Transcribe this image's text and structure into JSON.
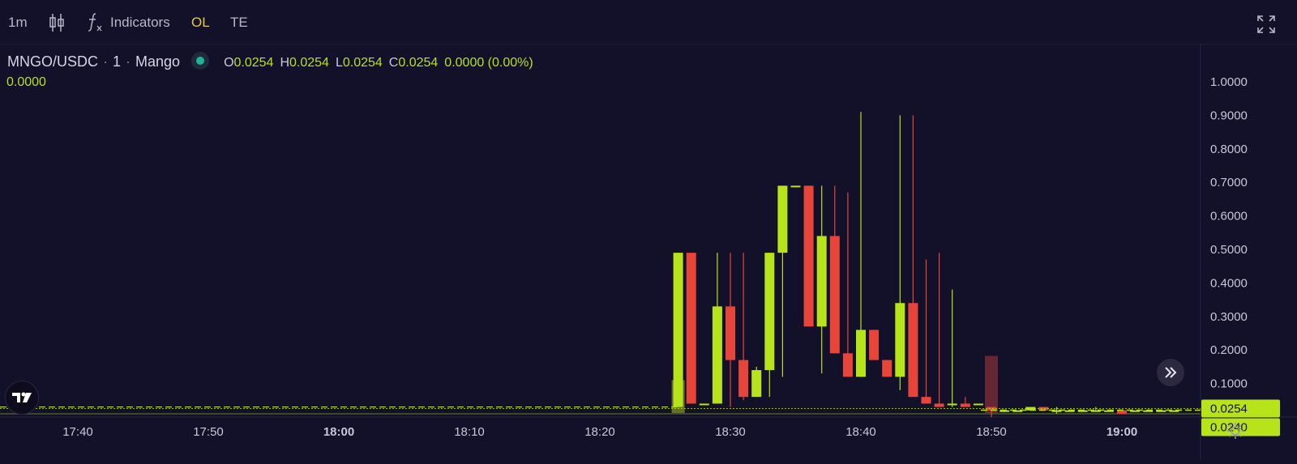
{
  "toolbar": {
    "interval": "1m",
    "chart_type_icon": "candlestick-icon",
    "indicators_icon": "function-icon",
    "indicators_label": "Indicators",
    "ol_label": "OL",
    "te_label": "TE",
    "fullscreen_icon": "fullscreen-icon"
  },
  "legend": {
    "symbol": "MNGO/USDC",
    "interval": "1",
    "exchange": "Mango",
    "o_key": "O",
    "o_val": "0.0254",
    "h_key": "H",
    "h_val": "0.0254",
    "l_key": "L",
    "l_val": "0.0254",
    "c_key": "C",
    "c_val": "0.0254",
    "change": "0.0000 (0.00%)",
    "volume": "0.0000"
  },
  "price_axis": {
    "ticks": [
      "1.0000",
      "0.9000",
      "0.8000",
      "0.7000",
      "0.6000",
      "0.5000",
      "0.4000",
      "0.3000",
      "0.2000",
      "0.1000"
    ],
    "last_price": "0.0254",
    "second_price": "0.0240"
  },
  "time_axis": {
    "ticks": [
      {
        "label": "17:40",
        "bold": false
      },
      {
        "label": "17:50",
        "bold": false
      },
      {
        "label": "18:00",
        "bold": true
      },
      {
        "label": "18:10",
        "bold": false
      },
      {
        "label": "18:20",
        "bold": false
      },
      {
        "label": "18:30",
        "bold": false
      },
      {
        "label": "18:40",
        "bold": false
      },
      {
        "label": "18:50",
        "bold": false
      },
      {
        "label": "19:00",
        "bold": true
      }
    ]
  },
  "colors": {
    "up": "#b6e31a",
    "down": "#e8453a",
    "bg": "#13102a",
    "accent": "#e6c84a"
  },
  "chart_data": {
    "type": "candlestick",
    "symbol": "MNGO/USDC",
    "yrange": [
      0,
      1.0
    ],
    "xrange_minutes": [
      "17:35",
      "19:05"
    ],
    "candles": [
      {
        "t": "18:26",
        "o": 0.03,
        "h": 0.49,
        "l": 0.03,
        "c": 0.49
      },
      {
        "t": "18:27",
        "o": 0.49,
        "h": 0.49,
        "l": 0.04,
        "c": 0.04
      },
      {
        "t": "18:28",
        "o": 0.04,
        "h": 0.04,
        "l": 0.04,
        "c": 0.04
      },
      {
        "t": "18:29",
        "o": 0.04,
        "h": 0.49,
        "l": 0.04,
        "c": 0.33
      },
      {
        "t": "18:30",
        "o": 0.33,
        "h": 0.49,
        "l": 0.03,
        "c": 0.17
      },
      {
        "t": "18:31",
        "o": 0.17,
        "h": 0.49,
        "l": 0.05,
        "c": 0.06
      },
      {
        "t": "18:32",
        "o": 0.06,
        "h": 0.15,
        "l": 0.06,
        "c": 0.14
      },
      {
        "t": "18:33",
        "o": 0.14,
        "h": 0.49,
        "l": 0.06,
        "c": 0.49
      },
      {
        "t": "18:34",
        "o": 0.49,
        "h": 0.69,
        "l": 0.12,
        "c": 0.69
      },
      {
        "t": "18:35",
        "o": 0.69,
        "h": 0.69,
        "l": 0.69,
        "c": 0.69
      },
      {
        "t": "18:36",
        "o": 0.69,
        "h": 0.69,
        "l": 0.27,
        "c": 0.27
      },
      {
        "t": "18:37",
        "o": 0.27,
        "h": 0.69,
        "l": 0.13,
        "c": 0.54
      },
      {
        "t": "18:38",
        "o": 0.54,
        "h": 0.69,
        "l": 0.19,
        "c": 0.19
      },
      {
        "t": "18:39",
        "o": 0.19,
        "h": 0.67,
        "l": 0.12,
        "c": 0.12
      },
      {
        "t": "18:40",
        "o": 0.12,
        "h": 0.91,
        "l": 0.12,
        "c": 0.26
      },
      {
        "t": "18:41",
        "o": 0.26,
        "h": 0.26,
        "l": 0.17,
        "c": 0.17
      },
      {
        "t": "18:42",
        "o": 0.17,
        "h": 0.17,
        "l": 0.12,
        "c": 0.12
      },
      {
        "t": "18:43",
        "o": 0.12,
        "h": 0.9,
        "l": 0.08,
        "c": 0.34
      },
      {
        "t": "18:44",
        "o": 0.34,
        "h": 0.9,
        "l": 0.06,
        "c": 0.06
      },
      {
        "t": "18:45",
        "o": 0.06,
        "h": 0.47,
        "l": 0.04,
        "c": 0.04
      },
      {
        "t": "18:46",
        "o": 0.04,
        "h": 0.49,
        "l": 0.03,
        "c": 0.03
      },
      {
        "t": "18:47",
        "o": 0.04,
        "h": 0.38,
        "l": 0.03,
        "c": 0.04
      },
      {
        "t": "18:48",
        "o": 0.04,
        "h": 0.06,
        "l": 0.03,
        "c": 0.03
      },
      {
        "t": "18:49",
        "o": 0.04,
        "h": 0.04,
        "l": 0.04,
        "c": 0.04
      },
      {
        "t": "18:50",
        "o": 0.03,
        "h": 0.03,
        "l": 0.0,
        "c": 0.02
      },
      {
        "t": "18:51",
        "o": 0.02,
        "h": 0.02,
        "l": 0.02,
        "c": 0.02
      },
      {
        "t": "18:52",
        "o": 0.02,
        "h": 0.02,
        "l": 0.02,
        "c": 0.02
      },
      {
        "t": "18:53",
        "o": 0.02,
        "h": 0.03,
        "l": 0.02,
        "c": 0.03
      },
      {
        "t": "18:54",
        "o": 0.03,
        "h": 0.03,
        "l": 0.02,
        "c": 0.02
      },
      {
        "t": "18:55",
        "o": 0.02,
        "h": 0.03,
        "l": 0.01,
        "c": 0.02
      },
      {
        "t": "18:56",
        "o": 0.02,
        "h": 0.02,
        "l": 0.02,
        "c": 0.02
      },
      {
        "t": "18:57",
        "o": 0.02,
        "h": 0.02,
        "l": 0.02,
        "c": 0.02
      },
      {
        "t": "18:58",
        "o": 0.02,
        "h": 0.03,
        "l": 0.02,
        "c": 0.02
      },
      {
        "t": "18:59",
        "o": 0.02,
        "h": 0.02,
        "l": 0.02,
        "c": 0.02
      },
      {
        "t": "19:00",
        "o": 0.02,
        "h": 0.02,
        "l": 0.01,
        "c": 0.01
      },
      {
        "t": "19:01",
        "o": 0.02,
        "h": 0.02,
        "l": 0.02,
        "c": 0.02
      },
      {
        "t": "19:02",
        "o": 0.02,
        "h": 0.02,
        "l": 0.02,
        "c": 0.02
      },
      {
        "t": "19:03",
        "o": 0.02,
        "h": 0.02,
        "l": 0.02,
        "c": 0.02
      },
      {
        "t": "19:04",
        "o": 0.02,
        "h": 0.02,
        "l": 0.02,
        "c": 0.02
      }
    ],
    "volume_bars": [
      {
        "t": "18:26",
        "v": 0.37,
        "dir": "up"
      },
      {
        "t": "18:50",
        "v": 0.63,
        "dir": "down"
      }
    ]
  }
}
